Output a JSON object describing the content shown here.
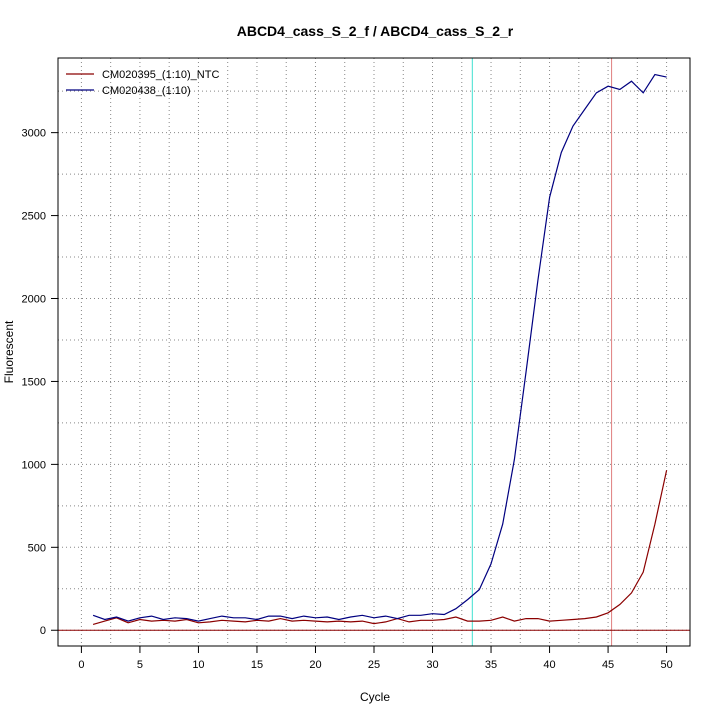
{
  "chart_data": {
    "type": "line",
    "title": "ABCD4_cass_S_2_f / ABCD4_cass_S_2_r",
    "xlabel": "Cycle",
    "ylabel": "Fluorescent",
    "xlim": [
      -2,
      52
    ],
    "ylim": [
      -95,
      3450
    ],
    "xticks": [
      0,
      5,
      10,
      15,
      20,
      25,
      30,
      35,
      40,
      45,
      50
    ],
    "yticks": [
      0,
      500,
      1000,
      1500,
      2000,
      2500,
      3000
    ],
    "grid": true,
    "legend_position": "top-left",
    "x": [
      1,
      2,
      3,
      4,
      5,
      6,
      7,
      8,
      9,
      10,
      11,
      12,
      13,
      14,
      15,
      16,
      17,
      18,
      19,
      20,
      21,
      22,
      23,
      24,
      25,
      26,
      27,
      28,
      29,
      30,
      31,
      32,
      33,
      34,
      35,
      36,
      37,
      38,
      39,
      40,
      41,
      42,
      43,
      44,
      45,
      46,
      47,
      48,
      49,
      50
    ],
    "series": [
      {
        "name": "CM020395_(1:10)_NTC",
        "color": "#8b0000",
        "values": [
          35,
          55,
          75,
          45,
          65,
          55,
          60,
          55,
          65,
          45,
          50,
          60,
          55,
          50,
          60,
          55,
          70,
          55,
          60,
          55,
          50,
          55,
          50,
          55,
          40,
          50,
          70,
          50,
          60,
          60,
          65,
          80,
          55,
          55,
          60,
          80,
          55,
          70,
          70,
          55,
          60,
          65,
          70,
          80,
          105,
          155,
          225,
          350,
          640,
          965
        ]
      },
      {
        "name": "CM020438_(1:10)",
        "color": "#000080",
        "values": [
          90,
          65,
          80,
          55,
          75,
          85,
          65,
          75,
          70,
          55,
          70,
          85,
          75,
          75,
          65,
          85,
          85,
          70,
          85,
          75,
          80,
          65,
          80,
          90,
          75,
          85,
          70,
          90,
          90,
          100,
          95,
          130,
          185,
          245,
          400,
          640,
          1030,
          1560,
          2110,
          2610,
          2880,
          3040,
          3140,
          3240,
          3280,
          3260,
          3310,
          3240,
          3350,
          3335
        ]
      }
    ],
    "reference_lines": [
      {
        "axis": "x",
        "value": 33.4,
        "color": "#40e0d0"
      },
      {
        "axis": "x",
        "value": 45.3,
        "color": "#e08080"
      },
      {
        "axis": "y",
        "value": 0,
        "color": "#8b0000"
      }
    ]
  }
}
